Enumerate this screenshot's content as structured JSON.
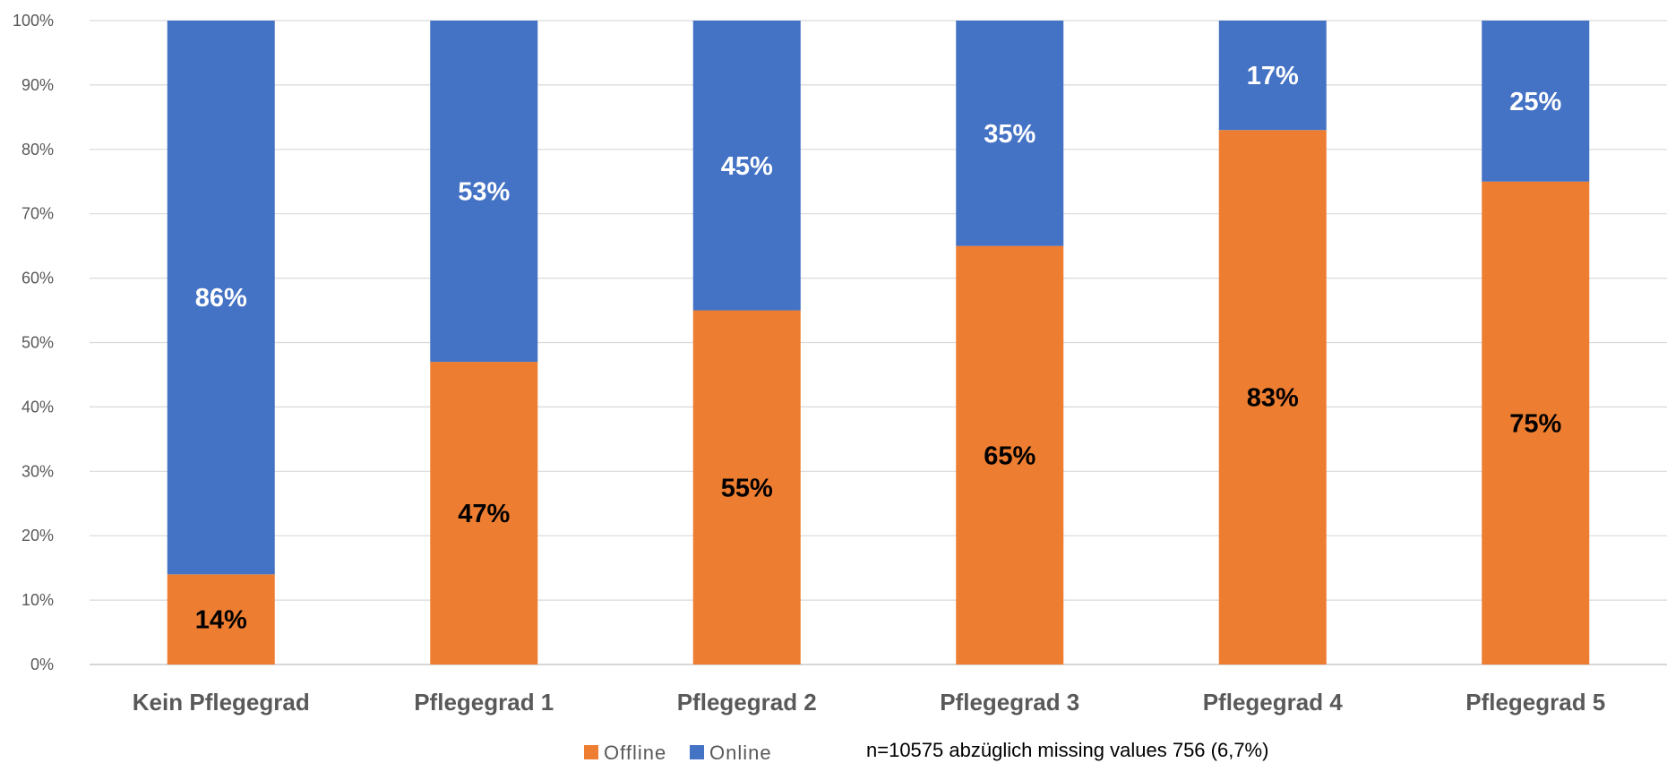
{
  "chart_data": {
    "type": "bar",
    "stacked": true,
    "percent_stacked": true,
    "categories": [
      "Kein Pflegegrad",
      "Pflegegrad 1",
      "Pflegegrad 2",
      "Pflegegrad 3",
      "Pflegegrad 4",
      "Pflegegrad 5"
    ],
    "series": [
      {
        "name": "Offline",
        "color": "#ED7D31",
        "values": [
          14,
          47,
          55,
          65,
          83,
          75
        ],
        "labels": [
          "14%",
          "47%",
          "55%",
          "65%",
          "83%",
          "75%"
        ],
        "label_color": "#000000"
      },
      {
        "name": "Online",
        "color": "#4472C4",
        "values": [
          86,
          53,
          45,
          35,
          17,
          25
        ],
        "labels": [
          "86%",
          "53%",
          "45%",
          "35%",
          "17%",
          "25%"
        ],
        "label_color": "#FFFFFF"
      }
    ],
    "ylim": [
      0,
      100
    ],
    "yticks": [
      "0%",
      "10%",
      "20%",
      "30%",
      "40%",
      "50%",
      "60%",
      "70%",
      "80%",
      "90%",
      "100%"
    ],
    "grid": true,
    "legend_position": "bottom",
    "title": "",
    "xlabel": "",
    "ylabel": "",
    "annotation": "n=10575 abzüglich missing values 756 (6,7%)"
  },
  "colors": {
    "grid": "#D9D9D9",
    "axis": "#BFBFBF"
  }
}
